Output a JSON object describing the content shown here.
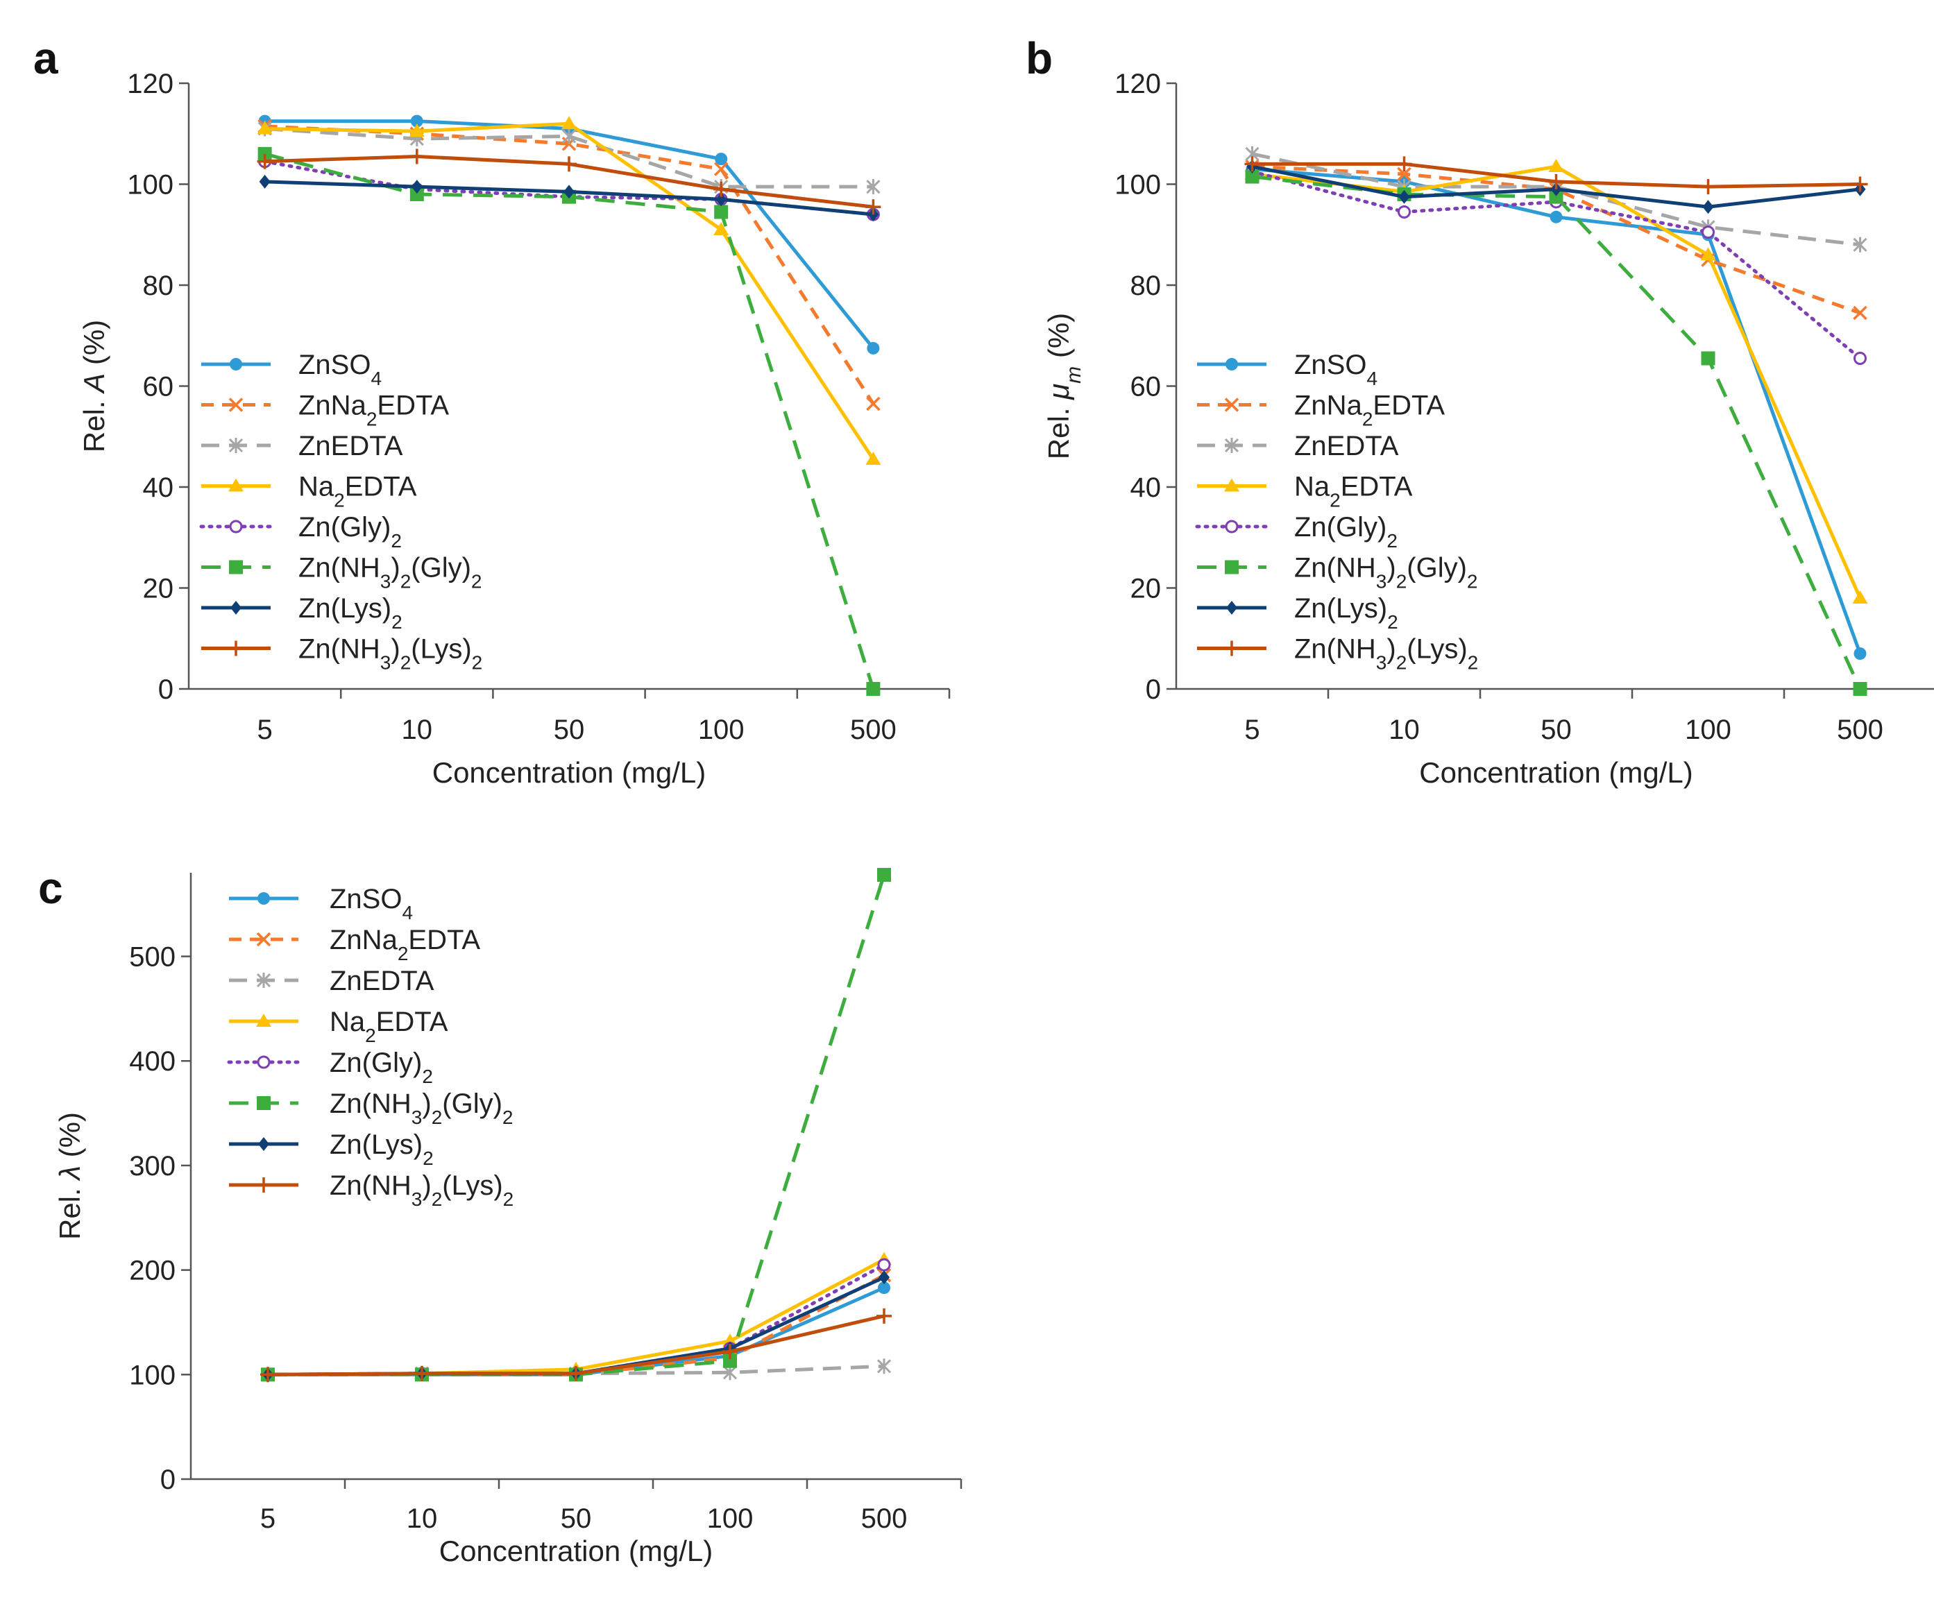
{
  "chart_data": [
    {
      "panel": "a",
      "type": "line",
      "xlabel": "Concentration (mg/L)",
      "ylabel_prefix": "Rel. ",
      "ylabel_symbol": "A",
      "ylabel_suffix": " (%)",
      "categories": [
        "5",
        "10",
        "50",
        "100",
        "500"
      ],
      "ylim": [
        0,
        120
      ],
      "yticks": [
        0,
        20,
        40,
        60,
        80,
        100,
        120
      ],
      "legend_position": "left",
      "series": [
        {
          "name": "ZnSO4",
          "values": [
            112.5,
            112.5,
            111,
            105,
            67.5
          ]
        },
        {
          "name": "ZnNa2EDTA",
          "values": [
            111.5,
            110,
            108,
            103,
            56.5
          ]
        },
        {
          "name": "ZnEDTA",
          "values": [
            111,
            109,
            109.5,
            99.5,
            99.5
          ]
        },
        {
          "name": "Na2EDTA",
          "values": [
            111,
            110.5,
            112,
            91,
            45.5
          ]
        },
        {
          "name": "Zn(Gly)2",
          "values": [
            104.5,
            99,
            97.5,
            97,
            94
          ]
        },
        {
          "name": "Zn(NH3)2(Gly)2",
          "values": [
            106,
            98,
            97.5,
            94.5,
            0
          ]
        },
        {
          "name": "Zn(Lys)2",
          "values": [
            100.5,
            99.5,
            98.5,
            97,
            94
          ]
        },
        {
          "name": "Zn(NH3)2(Lys)2",
          "values": [
            104.5,
            105.5,
            104,
            99,
            95.5
          ]
        }
      ]
    },
    {
      "panel": "b",
      "type": "line",
      "xlabel": "Concentration (mg/L)",
      "ylabel_prefix": "Rel. ",
      "ylabel_symbol": "μ",
      "ylabel_subscript": "m",
      "ylabel_suffix": " (%)",
      "categories": [
        "5",
        "10",
        "50",
        "100",
        "500"
      ],
      "ylim": [
        0,
        120
      ],
      "yticks": [
        0,
        20,
        40,
        60,
        80,
        100,
        120
      ],
      "legend_position": "left",
      "series": [
        {
          "name": "ZnSO4",
          "values": [
            103,
            100.5,
            93.5,
            90,
            7
          ]
        },
        {
          "name": "ZnNa2EDTA",
          "values": [
            103.5,
            102,
            99,
            85,
            74.5
          ]
        },
        {
          "name": "ZnEDTA",
          "values": [
            106,
            99.5,
            99.5,
            91.5,
            88
          ]
        },
        {
          "name": "Na2EDTA",
          "values": [
            102,
            98.5,
            103.5,
            86,
            18
          ]
        },
        {
          "name": "Zn(Gly)2",
          "values": [
            102.5,
            94.5,
            96.5,
            90.5,
            65.5
          ]
        },
        {
          "name": "Zn(NH3)2(Gly)2",
          "values": [
            101.5,
            98,
            97.5,
            65.5,
            0
          ]
        },
        {
          "name": "Zn(Lys)2",
          "values": [
            103.5,
            97.5,
            99,
            95.5,
            99
          ]
        },
        {
          "name": "Zn(NH3)2(Lys)2",
          "values": [
            104,
            104,
            100.5,
            99.5,
            100
          ]
        }
      ]
    },
    {
      "panel": "c",
      "type": "line",
      "xlabel": "Concentration (mg/L)",
      "ylabel_prefix": "Rel. ",
      "ylabel_symbol": "λ",
      "ylabel_suffix": " (%)",
      "categories": [
        "5",
        "10",
        "50",
        "100",
        "500"
      ],
      "ylim": [
        0,
        580
      ],
      "yticks": [
        0,
        100,
        200,
        300,
        400,
        500
      ],
      "legend_position": "top-left",
      "series": [
        {
          "name": "ZnSO4",
          "values": [
            100,
            100,
            100,
            118,
            183
          ]
        },
        {
          "name": "ZnNa2EDTA",
          "values": [
            100,
            101,
            100,
            116,
            195
          ]
        },
        {
          "name": "ZnEDTA",
          "values": [
            100,
            101,
            101,
            102,
            108
          ]
        },
        {
          "name": "Na2EDTA",
          "values": [
            100,
            101,
            105,
            132,
            210
          ]
        },
        {
          "name": "Zn(Gly)2",
          "values": [
            100,
            101,
            101,
            125,
            205
          ]
        },
        {
          "name": "Zn(NH3)2(Gly)2",
          "values": [
            100,
            100,
            100,
            113,
            578
          ]
        },
        {
          "name": "Zn(Lys)2",
          "values": [
            100,
            101,
            101,
            125,
            193
          ]
        },
        {
          "name": "Zn(NH3)2(Lys)2",
          "values": [
            100,
            101,
            101,
            122,
            156
          ]
        }
      ]
    }
  ],
  "series_styles": [
    {
      "color": "#2E9BD6",
      "dash": "",
      "marker": "circle-filled",
      "label_html": "ZnSO<tspan baseline-shift='sub' font-size='28'>4</tspan>"
    },
    {
      "color": "#F47A2D",
      "dash": "18 12",
      "marker": "x",
      "label_html": "ZnNa<tspan baseline-shift='sub' font-size='28'>2</tspan>EDTA"
    },
    {
      "color": "#A6A6A6",
      "dash": "26 14",
      "marker": "asterisk",
      "label_html": "ZnEDTA"
    },
    {
      "color": "#FFC000",
      "dash": "",
      "marker": "triangle",
      "label_html": "Na<tspan baseline-shift='sub' font-size='28'>2</tspan>EDTA"
    },
    {
      "color": "#7E3FB4",
      "dash": "3 9",
      "marker": "circle-open",
      "label_html": "Zn(Gly)<tspan baseline-shift='sub' font-size='28'>2</tspan>"
    },
    {
      "color": "#3DAE3D",
      "dash": "28 16",
      "marker": "square",
      "label_html": "Zn(NH<tspan baseline-shift='sub' font-size='28'>3</tspan>)<tspan baseline-shift='sub' font-size='28'>2</tspan>(Gly)<tspan baseline-shift='sub' font-size='28'>2</tspan>"
    },
    {
      "color": "#0F3F75",
      "dash": "",
      "marker": "diamond",
      "label_html": "Zn(Lys)<tspan baseline-shift='sub' font-size='28'>2</tspan>"
    },
    {
      "color": "#C14D0C",
      "dash": "",
      "marker": "plus",
      "label_html": "Zn(NH<tspan baseline-shift='sub' font-size='28'>3</tspan>)<tspan baseline-shift='sub' font-size='28'>2</tspan>(Lys)<tspan baseline-shift='sub' font-size='28'>2</tspan>"
    }
  ]
}
